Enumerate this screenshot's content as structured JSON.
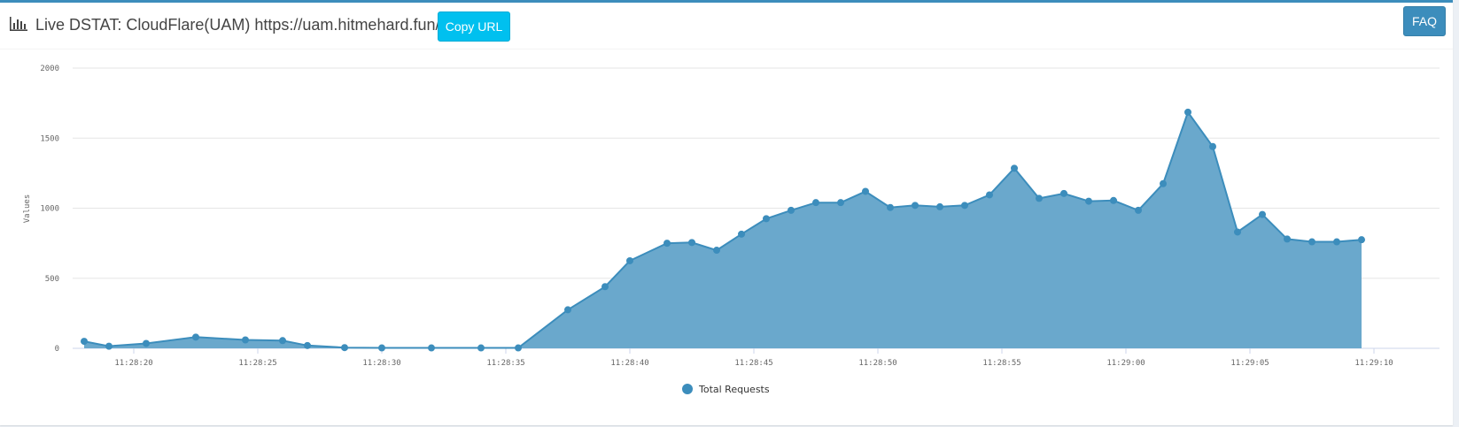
{
  "header": {
    "title": "Live DSTAT: CloudFlare(UAM) https://uam.hitmehard.fun/HIT",
    "title_icon": "bar-chart-icon",
    "copy_url_label": "Copy URL",
    "faq_label": "FAQ"
  },
  "colors": {
    "series": "#3c8dbc",
    "area": "#6aa8cc",
    "copy_button": "#00c0ef",
    "faq_button": "#3c8dbc"
  },
  "chart_data": {
    "type": "area",
    "title": "",
    "xlabel": "",
    "ylabel": "Values",
    "ylim": [
      0,
      2000
    ],
    "yticks": [
      0,
      500,
      1000,
      1500,
      2000
    ],
    "xticks": [
      "11:28:20",
      "11:28:25",
      "11:28:30",
      "11:28:35",
      "11:28:40",
      "11:28:45",
      "11:28:50",
      "11:28:55",
      "11:29:00",
      "11:29:05",
      "11:29:10"
    ],
    "grid": true,
    "legend_position": "bottom",
    "series": [
      {
        "name": "Total Requests",
        "x": [
          "11:28:18",
          "11:28:19",
          "11:28:20.5",
          "11:28:22.5",
          "11:28:24.5",
          "11:28:26",
          "11:28:27",
          "11:28:28.5",
          "11:28:30",
          "11:28:32",
          "11:28:34",
          "11:28:35.5",
          "11:28:37.5",
          "11:28:39",
          "11:28:40",
          "11:28:41.5",
          "11:28:42.5",
          "11:28:43.5",
          "11:28:44.5",
          "11:28:45.5",
          "11:28:46.5",
          "11:28:47.5",
          "11:28:48.5",
          "11:28:49.5",
          "11:28:50.5",
          "11:28:51.5",
          "11:28:52.5",
          "11:28:53.5",
          "11:28:54.5",
          "11:28:55.5",
          "11:28:56.5",
          "11:28:57.5",
          "11:28:58.5",
          "11:28:59.5",
          "11:29:00.5",
          "11:29:01.5",
          "11:29:02.5",
          "11:29:03.5",
          "11:29:04.5",
          "11:29:05.5",
          "11:29:06.5",
          "11:29:07.5",
          "11:29:08.5",
          "11:29:09.5"
        ],
        "values": [
          50,
          15,
          35,
          80,
          60,
          55,
          20,
          5,
          3,
          3,
          3,
          3,
          275,
          440,
          625,
          750,
          755,
          700,
          815,
          925,
          985,
          1040,
          1040,
          1120,
          1005,
          1020,
          1010,
          1020,
          1095,
          1285,
          1070,
          1105,
          1050,
          1055,
          985,
          1175,
          1685,
          1440,
          830,
          955,
          780,
          760,
          760,
          775
        ]
      }
    ]
  }
}
